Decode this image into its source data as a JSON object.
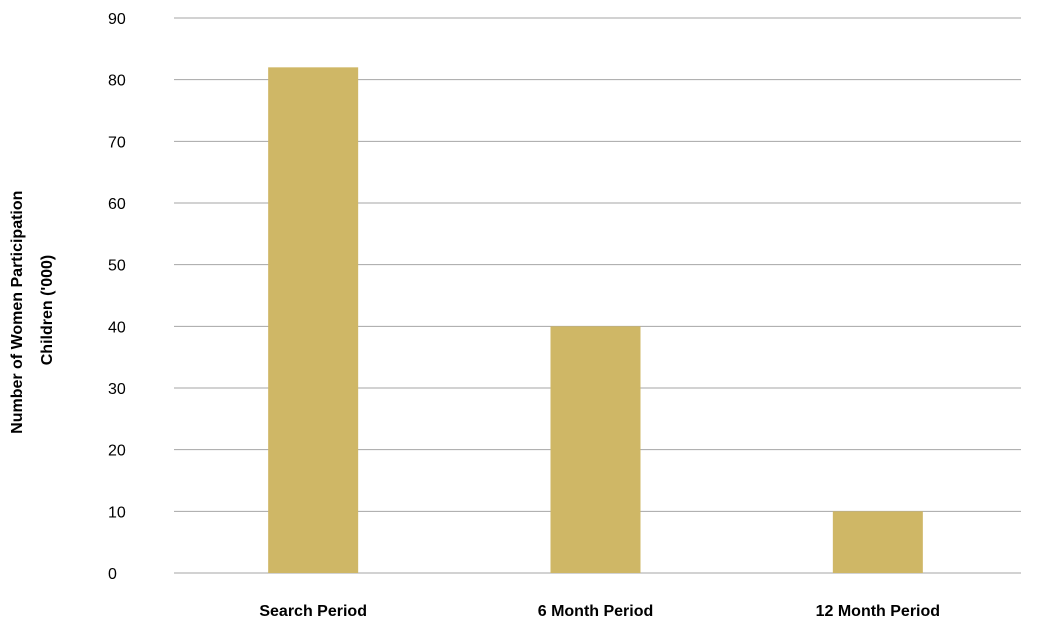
{
  "chart_data": {
    "type": "bar",
    "categories": [
      "Search Period",
      "6 Month Period",
      "12 Month Period"
    ],
    "values": [
      82,
      40,
      10
    ],
    "ylabel_lines": [
      "Number of Women Participation",
      "Children ('000)"
    ],
    "xlabel": "",
    "title": "",
    "ylim": [
      0,
      90
    ],
    "yticks": [
      0,
      10,
      20,
      30,
      40,
      50,
      60,
      70,
      80,
      90
    ],
    "grid": true,
    "legend": "none",
    "bar_color": "#CFB766",
    "grid_color": "#A6A6A6"
  }
}
